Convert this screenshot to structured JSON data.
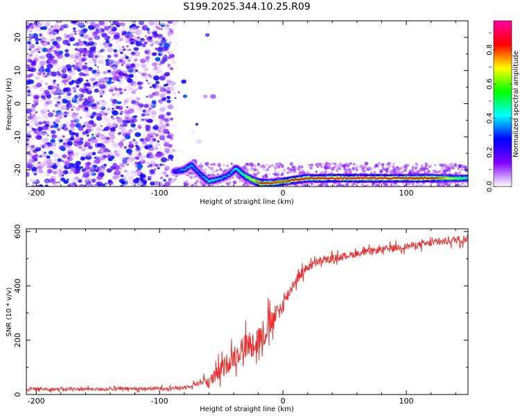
{
  "title": "S199.2025.344.10.25.R09",
  "colors": {
    "signal_line": "#e83030",
    "axis": "#000000"
  },
  "chart_data": [
    {
      "type": "heatmap",
      "xlabel": "Height of straight line (km)",
      "ylabel": "Frequency (Hz)",
      "xlim": [
        -208,
        150
      ],
      "ylim": [
        -25,
        25
      ],
      "x_ticks": [
        -200,
        -100,
        0,
        100
      ],
      "x_tick_labels": [
        "-200",
        "-100",
        "0",
        "100"
      ],
      "y_ticks": [
        -20,
        -10,
        0,
        10,
        20
      ],
      "y_tick_labels": [
        "-20",
        "-10",
        "0",
        "10",
        "20"
      ],
      "grid": false,
      "colorbar": {
        "label": "Normalized spectral amplitude",
        "range": [
          0,
          0.97
        ],
        "ticks": [
          0.0,
          0.2,
          0.4,
          0.6,
          0.8
        ],
        "tick_labels": [
          "0.0",
          "0.2",
          "0.4",
          "0.6",
          "0.8"
        ],
        "colormap": [
          "#ffffff",
          "#8000ff",
          "#0000ff",
          "#00ffff",
          "#00ff00",
          "#ffff00",
          "#ff0000",
          "#ff00a0"
        ]
      },
      "noise_region_x": [
        -208,
        -65
      ],
      "signal_track": {
        "x": [
          -88,
          -80,
          -74,
          -68,
          -60,
          -50,
          -44,
          -38,
          -32,
          -25,
          -18,
          -10,
          0,
          10,
          20,
          40,
          60,
          80,
          100,
          120,
          150
        ],
        "y": [
          -20.5,
          -20,
          -18.5,
          -21,
          -23.5,
          -22.5,
          -21.5,
          -19.5,
          -21.5,
          -23,
          -24,
          -24,
          -23.5,
          -23,
          -22.5,
          -22.5,
          -22.5,
          -22.5,
          -22.5,
          -22.5,
          -22.5
        ],
        "amplitude": [
          0.3,
          0.4,
          0.4,
          0.35,
          0.45,
          0.4,
          0.38,
          0.45,
          0.55,
          0.7,
          0.85,
          0.85,
          0.8,
          0.9,
          0.9,
          0.95,
          0.95,
          0.95,
          0.92,
          0.9,
          0.5
        ]
      }
    },
    {
      "type": "line",
      "xlabel": "Height of straight line (km)",
      "ylabel": "SNR (10 * v/v)",
      "xlim": [
        -208,
        150
      ],
      "ylim": [
        0,
        610
      ],
      "x_ticks": [
        -200,
        -100,
        0,
        100
      ],
      "x_tick_labels": [
        "-200",
        "-100",
        "0",
        "100"
      ],
      "y_ticks": [
        0,
        200,
        400,
        600
      ],
      "y_tick_labels": [
        "0",
        "200",
        "400",
        "600"
      ],
      "grid": false,
      "series": [
        {
          "color": "#e83030",
          "x": [
            -208,
            -150,
            -100,
            -80,
            -70,
            -65,
            -60,
            -50,
            -40,
            -30,
            -20,
            -15,
            -10,
            0,
            10,
            20,
            30,
            50,
            75,
            100,
            125,
            150
          ],
          "y": [
            20,
            20,
            22,
            25,
            40,
            50,
            45,
            90,
            140,
            180,
            200,
            230,
            260,
            330,
            420,
            470,
            490,
            510,
            530,
            545,
            560,
            575
          ],
          "noise_amplitude": [
            8,
            8,
            9,
            10,
            12,
            20,
            30,
            50,
            60,
            70,
            80,
            80,
            70,
            40,
            30,
            25,
            20,
            18,
            18,
            18,
            20,
            22
          ]
        }
      ]
    }
  ]
}
